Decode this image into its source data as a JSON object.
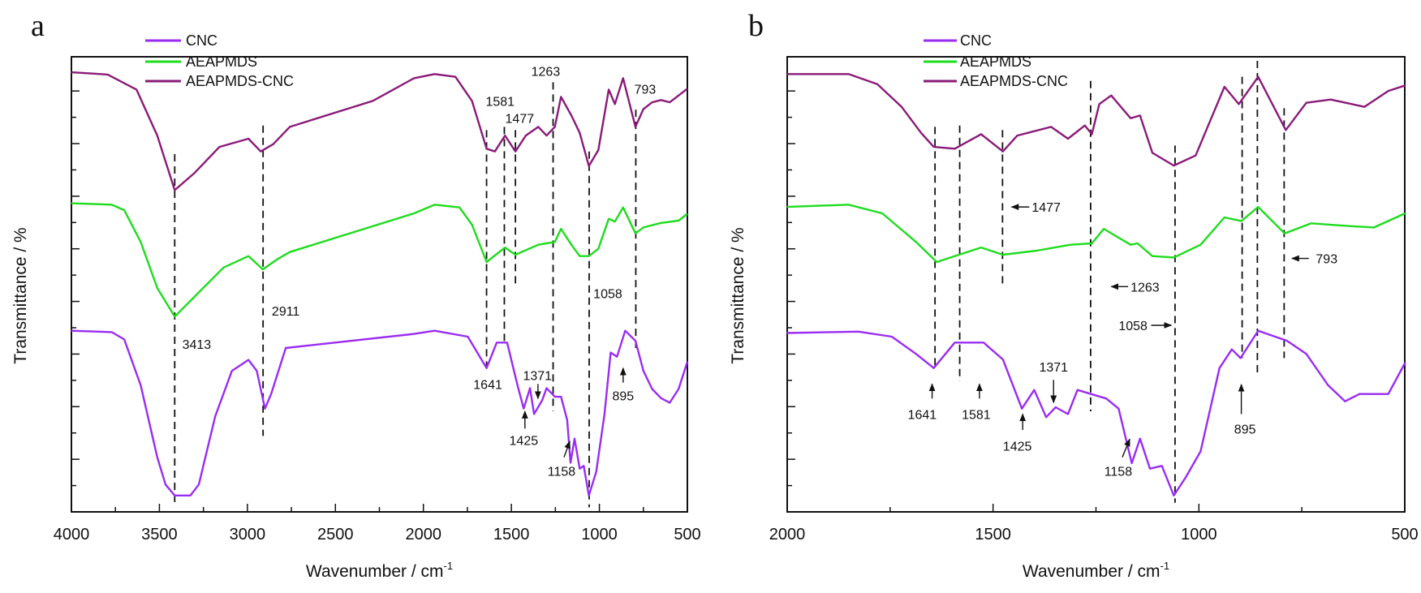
{
  "chart_data": [
    {
      "panel_label": "a",
      "type": "line",
      "xlabel": "Wavenumber / cm",
      "xlabel_sup": "-1",
      "ylabel": "Transmittance / %",
      "xlim": [
        4000,
        500
      ],
      "x_reversed": true,
      "xticks": [
        4000,
        3500,
        3000,
        2500,
        2000,
        1500,
        1000,
        500
      ],
      "ylim": [
        0,
        100
      ],
      "y_tick_labels_shown": false,
      "grid": false,
      "legend_position": "top-left",
      "series": [
        {
          "name": "CNC",
          "color": "#9a2cf2",
          "x": [
            4001,
            3771,
            3700,
            3606,
            3512,
            3465,
            3413,
            3324,
            3276,
            3183,
            3088,
            2994,
            2947,
            2900,
            2865,
            2782,
            2053,
            1936,
            1748,
            1641,
            1583,
            1524,
            1465,
            1430,
            1394,
            1371,
            1324,
            1300,
            1253,
            1218,
            1183,
            1164,
            1141,
            1112,
            1089,
            1060,
            1018,
            971,
            936,
            900,
            853,
            795,
            750,
            700,
            650,
            600,
            550,
            500
          ],
          "y": [
            39.8,
            39.5,
            37.9,
            27.8,
            12.0,
            6.0,
            3.6,
            3.6,
            6.0,
            21.0,
            31.0,
            33.4,
            31.0,
            22.7,
            25.9,
            36.0,
            39.1,
            39.8,
            38.5,
            31.6,
            37.2,
            37.2,
            27.8,
            22.7,
            27.2,
            21.5,
            24.6,
            27.2,
            25.3,
            25.3,
            20.2,
            10.8,
            16.1,
            9.5,
            10.1,
            3.6,
            8.8,
            21.5,
            35.0,
            34.1,
            39.8,
            37.6,
            31.0,
            27.0,
            25.0,
            24.0,
            27.0,
            33.0
          ]
        },
        {
          "name": "AEAPMDS",
          "color": "#1edc1e",
          "x": [
            4001,
            3771,
            3700,
            3606,
            3512,
            3413,
            3300,
            3135,
            2994,
            2912,
            2830,
            2759,
            2053,
            1936,
            1795,
            1724,
            1641,
            1536,
            1477,
            1347,
            1253,
            1218,
            1159,
            1112,
            1060,
            1006,
            947,
            912,
            865,
            795,
            750,
            650,
            550,
            500
          ],
          "y": [
            67.8,
            67.5,
            66.3,
            59.3,
            49.2,
            42.9,
            47.3,
            53.7,
            56.2,
            53.3,
            55.5,
            57.1,
            65.6,
            67.5,
            66.9,
            63.1,
            54.9,
            58.1,
            56.5,
            58.7,
            59.3,
            62.2,
            58.7,
            56.2,
            56.2,
            57.8,
            64.4,
            63.8,
            66.9,
            61.2,
            62.5,
            63.5,
            64.0,
            65.5
          ]
        },
        {
          "name": "AEAPMDS-CNC",
          "color": "#8a1a78",
          "x": [
            4001,
            3794,
            3630,
            3512,
            3413,
            3300,
            3159,
            2994,
            2924,
            2853,
            2759,
            2288,
            2053,
            1936,
            1818,
            1724,
            1641,
            1594,
            1536,
            1477,
            1418,
            1347,
            1300,
            1253,
            1218,
            1159,
            1112,
            1060,
            1006,
            947,
            912,
            865,
            795,
            750,
            700,
            650,
            600,
            550,
            500
          ],
          "y": [
            96.6,
            96.1,
            92.8,
            82.7,
            70.7,
            74.5,
            80.2,
            82.0,
            79.2,
            80.8,
            84.6,
            90.3,
            95.3,
            96.2,
            95.6,
            90.3,
            79.8,
            79.2,
            82.7,
            79.2,
            82.7,
            84.6,
            82.7,
            84.6,
            91.2,
            87.1,
            83.3,
            76.0,
            79.5,
            92.8,
            89.6,
            95.3,
            84.6,
            88.5,
            90.0,
            90.5,
            90.0,
            91.5,
            93.0
          ]
        }
      ],
      "dashed_lines": [
        {
          "x": 3413,
          "y": [
            78.6,
            2
          ]
        },
        {
          "x": 2911,
          "y": [
            84.9,
            16.7
          ]
        },
        {
          "x": 1641,
          "y": [
            83.9,
            31.6
          ]
        },
        {
          "x": 1540,
          "y": [
            84.6,
            37.5
          ]
        },
        {
          "x": 1477,
          "y": [
            83.9,
            50.2
          ]
        },
        {
          "x": 1263,
          "y": [
            94.4,
            22.1
          ]
        },
        {
          "x": 1058,
          "y": [
            79.2,
            1
          ]
        },
        {
          "x": 793,
          "y": [
            88.4,
            36
          ]
        }
      ],
      "annotations": [
        {
          "text": "1263",
          "x": 1305,
          "y": 96.9
        },
        {
          "text": "1581",
          "x": 1564,
          "y": 90.3
        },
        {
          "text": "1477",
          "x": 1453,
          "y": 86.5
        },
        {
          "text": "793",
          "x": 740,
          "y": 93.0
        },
        {
          "text": "3413",
          "x": 3288,
          "y": 36.9
        },
        {
          "text": "2911",
          "x": 2782,
          "y": 44.2
        },
        {
          "text": "1058",
          "x": 952,
          "y": 48.0
        },
        {
          "text": "1641",
          "x": 1634,
          "y": 28.1
        },
        {
          "text": "1371",
          "x": 1352,
          "y": 30.0
        },
        {
          "text": "1425",
          "x": 1430,
          "y": 15.8
        },
        {
          "text": "895",
          "x": 865,
          "y": 25.6
        },
        {
          "text": "1158",
          "x": 1215,
          "y": 9.0
        }
      ],
      "arrows": [
        {
          "from": [
            1423,
            18.3
          ],
          "to": [
            1423,
            22.1
          ]
        },
        {
          "from": [
            1349,
            28.1
          ],
          "to": [
            1349,
            24.9
          ]
        },
        {
          "from": [
            865,
            28.4
          ],
          "to": [
            865,
            31.6
          ]
        },
        {
          "from": [
            1201,
            12.0
          ],
          "to": [
            1168,
            15.5
          ]
        }
      ]
    },
    {
      "panel_label": "b",
      "type": "line",
      "xlabel": "Wavenumber / cm",
      "xlabel_sup": "-1",
      "ylabel": "Transmittance / %",
      "xlim": [
        2000,
        500
      ],
      "x_reversed": true,
      "xticks": [
        2000,
        1500,
        1000,
        500
      ],
      "ylim": [
        0,
        100
      ],
      "y_tick_labels_shown": false,
      "grid": false,
      "legend_position": "top-left",
      "series": [
        {
          "name": "CNC",
          "color": "#9a2cf2",
          "x": [
            2001,
            1827,
            1746,
            1687,
            1644,
            1593,
            1523,
            1476,
            1430,
            1400,
            1371,
            1348,
            1318,
            1295,
            1225,
            1195,
            1163,
            1143,
            1119,
            1090,
            1061,
            1032,
            996,
            950,
            920,
            899,
            856,
            786,
            739,
            686,
            645,
            610,
            540,
            499
          ],
          "y": [
            39.3,
            39.6,
            38.5,
            34.7,
            31.6,
            37.2,
            37.2,
            33.5,
            22.7,
            26.8,
            20.8,
            23.0,
            21.5,
            26.8,
            24.9,
            22.7,
            10.7,
            16.1,
            9.5,
            10.1,
            3.6,
            7.6,
            13.3,
            31.6,
            35.7,
            33.8,
            39.8,
            37.6,
            34.7,
            27.8,
            24.3,
            25.9,
            25.9,
            32.8
          ]
        },
        {
          "name": "AEAPMDS",
          "color": "#1edc1e",
          "x": [
            2001,
            1851,
            1769,
            1687,
            1637,
            1529,
            1476,
            1394,
            1312,
            1260,
            1231,
            1166,
            1149,
            1113,
            1061,
            996,
            938,
            897,
            856,
            792,
            727,
            634,
            575,
            499
          ],
          "y": [
            67.0,
            67.5,
            65.6,
            59.3,
            54.9,
            58.1,
            56.5,
            57.4,
            58.7,
            59.0,
            62.2,
            58.7,
            59.0,
            56.2,
            55.9,
            58.7,
            64.7,
            63.9,
            67.0,
            61.2,
            63.4,
            62.8,
            62.5,
            65.6
          ]
        },
        {
          "name": "AEAPMDS-CNC",
          "color": "#8a1a78",
          "x": [
            2001,
            1851,
            1781,
            1722,
            1675,
            1644,
            1593,
            1529,
            1476,
            1441,
            1359,
            1318,
            1277,
            1260,
            1242,
            1213,
            1166,
            1143,
            1113,
            1061,
            1008,
            938,
            903,
            856,
            789,
            739,
            680,
            598,
            540,
            499
          ],
          "y": [
            96.2,
            96.2,
            94.0,
            89.0,
            83.3,
            80.2,
            79.8,
            83.0,
            79.2,
            82.7,
            84.6,
            82.0,
            84.9,
            83.0,
            89.6,
            91.5,
            86.5,
            87.1,
            78.9,
            76.1,
            78.3,
            93.4,
            89.6,
            95.6,
            83.9,
            89.9,
            90.6,
            89.0,
            92.5,
            93.7
          ]
        }
      ],
      "dashed_lines": [
        {
          "x": 1641,
          "y": [
            84.6,
            32.2
          ]
        },
        {
          "x": 1581,
          "y": [
            84.9,
            28.7
          ]
        },
        {
          "x": 1477,
          "y": [
            83.9,
            50.2
          ]
        },
        {
          "x": 1263,
          "y": [
            94.7,
            22.1
          ]
        },
        {
          "x": 1058,
          "y": [
            80.5,
            2
          ]
        },
        {
          "x": 895,
          "y": [
            95.6,
            33.8
          ]
        },
        {
          "x": 858,
          "y": [
            99.1,
            30.0
          ]
        },
        {
          "x": 793,
          "y": [
            88.7,
            33.8
          ]
        }
      ],
      "annotations": [
        {
          "text": "1477",
          "x": 1406,
          "y": 67.0,
          "anchor": "start"
        },
        {
          "text": "793",
          "x": 716,
          "y": 55.7,
          "anchor": "start"
        },
        {
          "text": "1263",
          "x": 1166,
          "y": 49.5,
          "anchor": "start"
        },
        {
          "text": "1058",
          "x": 1125,
          "y": 41.0,
          "anchor": "end"
        },
        {
          "text": "1641",
          "x": 1672,
          "y": 21.5
        },
        {
          "text": "1581",
          "x": 1541,
          "y": 21.5
        },
        {
          "text": "1425",
          "x": 1441,
          "y": 14.5
        },
        {
          "text": "1371",
          "x": 1353,
          "y": 31.9
        },
        {
          "text": "895",
          "x": 888,
          "y": 18.3
        },
        {
          "text": "1158",
          "x": 1196,
          "y": 9.0
        }
      ],
      "arrows": [
        {
          "from": [
            1412,
            67.0
          ],
          "to": [
            1455,
            67.0
          ]
        },
        {
          "from": [
            733,
            55.7
          ],
          "to": [
            774,
            55.7
          ]
        },
        {
          "from": [
            1172,
            49.5
          ],
          "to": [
            1213,
            49.5
          ]
        },
        {
          "from": [
            1116,
            41.0
          ],
          "to": [
            1067,
            41.0
          ]
        },
        {
          "from": [
            1648,
            24.9
          ],
          "to": [
            1648,
            28.1
          ]
        },
        {
          "from": [
            1533,
            24.9
          ],
          "to": [
            1533,
            28.1
          ]
        },
        {
          "from": [
            1428,
            18.0
          ],
          "to": [
            1428,
            21.5
          ]
        },
        {
          "from": [
            1353,
            29.0
          ],
          "to": [
            1353,
            24.0
          ]
        },
        {
          "from": [
            897,
            21.5
          ],
          "to": [
            897,
            28.0
          ]
        },
        {
          "from": [
            1186,
            12.0
          ],
          "to": [
            1168,
            16.0
          ]
        }
      ]
    }
  ]
}
